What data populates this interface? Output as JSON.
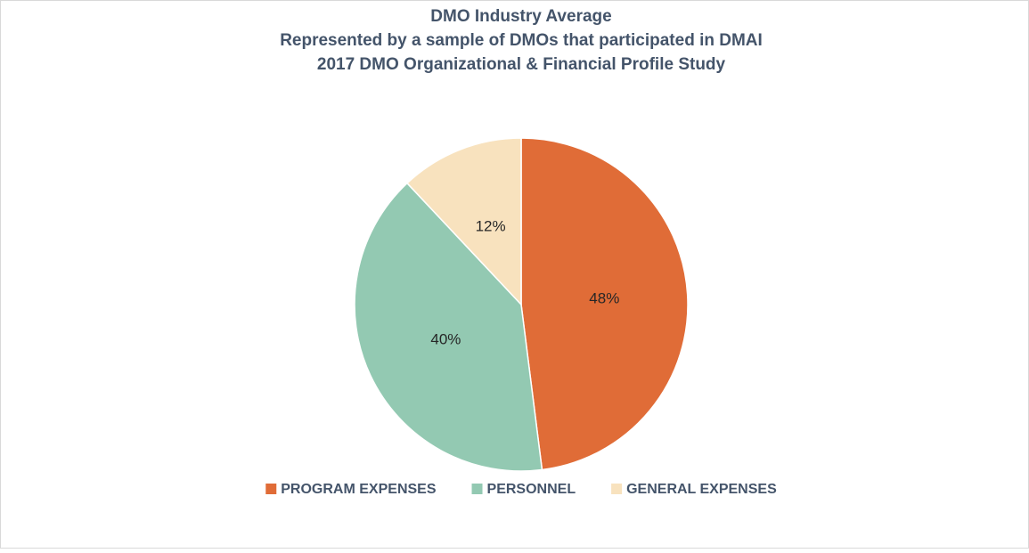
{
  "chart_data": {
    "type": "pie",
    "title": "DMO Industry Average",
    "subtitle": [
      "Represented by a sample of DMOs that participated in DMAI",
      "2017 DMO Organizational & Financial Profile Study"
    ],
    "categories": [
      "PROGRAM EXPENSES",
      "PERSONNEL",
      "GENERAL EXPENSES"
    ],
    "values": [
      48,
      40,
      12
    ],
    "value_labels": [
      "48%",
      "40%",
      "12%"
    ],
    "colors": [
      "#e06c37",
      "#93c9b2",
      "#f8e2be"
    ],
    "legend": "bottom"
  }
}
